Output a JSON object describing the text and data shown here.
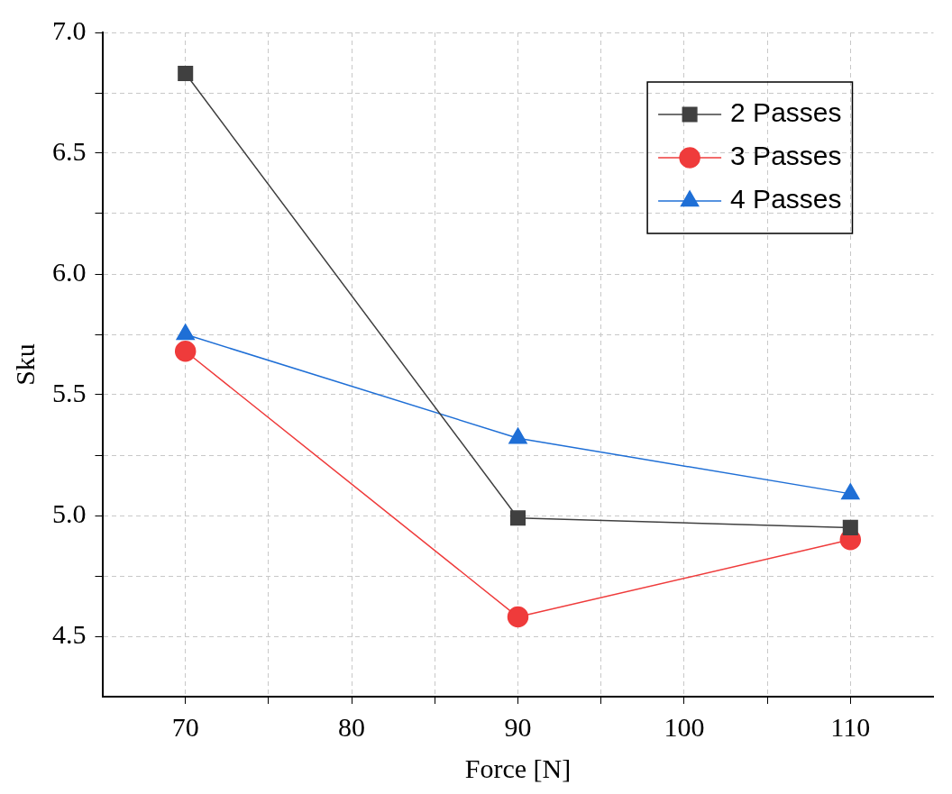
{
  "chart_data": {
    "type": "line",
    "xlabel": "Force [N]",
    "ylabel": "Sku",
    "x": [
      70,
      90,
      110
    ],
    "series": [
      {
        "name": "2 Passes",
        "color": "#404040",
        "marker": "square",
        "values": [
          6.83,
          4.99,
          4.95
        ]
      },
      {
        "name": "3 Passes",
        "color": "#ef3b3b",
        "marker": "circle",
        "values": [
          5.68,
          4.58,
          4.9
        ]
      },
      {
        "name": "4 Passes",
        "color": "#1f6fd6",
        "marker": "triangle",
        "values": [
          5.75,
          5.32,
          5.09
        ]
      }
    ],
    "xlim": [
      65,
      115
    ],
    "xticks": [
      70,
      {
        "value": 75,
        "label": null
      },
      80,
      {
        "value": 85,
        "label": null
      },
      90,
      {
        "value": 95,
        "label": null
      },
      100,
      {
        "value": 105,
        "label": null
      },
      110
    ],
    "ylim": [
      4.25,
      7.0
    ],
    "yticks": [
      {
        "value": 4.5,
        "label": "4.5"
      },
      {
        "value": 4.75,
        "label": null
      },
      {
        "value": 5.0,
        "label": "5.0"
      },
      {
        "value": 5.25,
        "label": null
      },
      {
        "value": 5.5,
        "label": "5.5"
      },
      {
        "value": 5.75,
        "label": null
      },
      {
        "value": 6.0,
        "label": "6.0"
      },
      {
        "value": 6.25,
        "label": null
      },
      {
        "value": 6.5,
        "label": "6.5"
      },
      {
        "value": 6.75,
        "label": null
      },
      {
        "value": 7.0,
        "label": "7.0"
      }
    ],
    "grid": true,
    "legend": "top right",
    "line_style": "solid"
  }
}
